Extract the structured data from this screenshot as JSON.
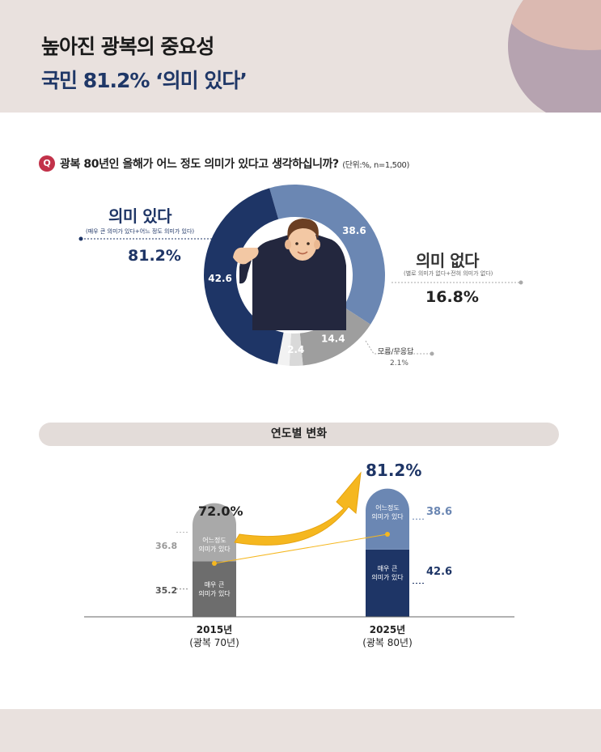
{
  "header": {
    "title_line1": "높아진 광복의 중요성",
    "title_line2": "국민 81.2% ‘의미 있다’"
  },
  "question": {
    "badge": "Q",
    "text": "광복 80년인 올해가 어느 정도 의미가 있다고 생각하십니까?",
    "unit": "(단위:%, n=1,500)"
  },
  "donut": {
    "yes": {
      "title": "의미 있다",
      "sub": "(매우 큰 의미가 있다+어느 정도 의미가 있다)",
      "pct": "81.2%"
    },
    "no": {
      "title": "의미 없다",
      "sub": "(별로 의미가 없다+전혀 의미가 없다)",
      "pct": "16.8%"
    },
    "dk": {
      "label": "모름/무응답",
      "pct": "2.1%"
    },
    "slice_labels": [
      "38.6",
      "14.4",
      "2.4",
      "42.6"
    ]
  },
  "yearly": {
    "section_title": "연도별 변화",
    "bars": [
      {
        "year": "2015년",
        "sub": "(광복 70년)",
        "total": "72.0%",
        "upper_label": "어느정도\n의미가 있다",
        "lower_label": "매우 큰\n의미가 있다",
        "upper_value": "36.8",
        "lower_value": "35.2"
      },
      {
        "year": "2025년",
        "sub": "(광복 80년)",
        "total": "81.2%",
        "upper_label": "어느정도\n의미가 있다",
        "lower_label": "매우 큰\n의미가 있다",
        "upper_value": "38.6",
        "lower_value": "42.6"
      }
    ]
  },
  "colors": {
    "navy": "#1e3566",
    "steel": "#6b87b3",
    "gray": "#9e9e9e",
    "light_gray": "#d9d9d9",
    "dark_gray": "#6d6d6d",
    "bar_light": "#a9a9a9",
    "accent_yellow": "#f5b71f"
  },
  "chart_data": [
    {
      "type": "pie",
      "title": "광복 80년인 올해가 어느 정도 의미가 있다고 생각하십니까?",
      "unit": "%",
      "slices": [
        {
          "name": "어느 정도 의미가 있다",
          "value": 38.6
        },
        {
          "name": "별로 의미가 없다",
          "value": 14.4
        },
        {
          "name": "전혀 의미가 없다",
          "value": 2.4
        },
        {
          "name": "모름/무응답",
          "value": 2.1
        },
        {
          "name": "매우 큰 의미가 있다",
          "value": 42.6
        }
      ],
      "groups": [
        {
          "name": "의미 있다",
          "value": 81.2
        },
        {
          "name": "의미 없다",
          "value": 16.8
        },
        {
          "name": "모름/무응답",
          "value": 2.1
        }
      ]
    },
    {
      "type": "bar",
      "stacked": true,
      "title": "연도별 변화",
      "categories": [
        "2015년 (광복 70년)",
        "2025년 (광복 80년)"
      ],
      "series": [
        {
          "name": "매우 큰 의미가 있다",
          "values": [
            35.2,
            42.6
          ]
        },
        {
          "name": "어느정도 의미가 있다",
          "values": [
            36.8,
            38.6
          ]
        }
      ],
      "totals": [
        72.0,
        81.2
      ]
    }
  ]
}
